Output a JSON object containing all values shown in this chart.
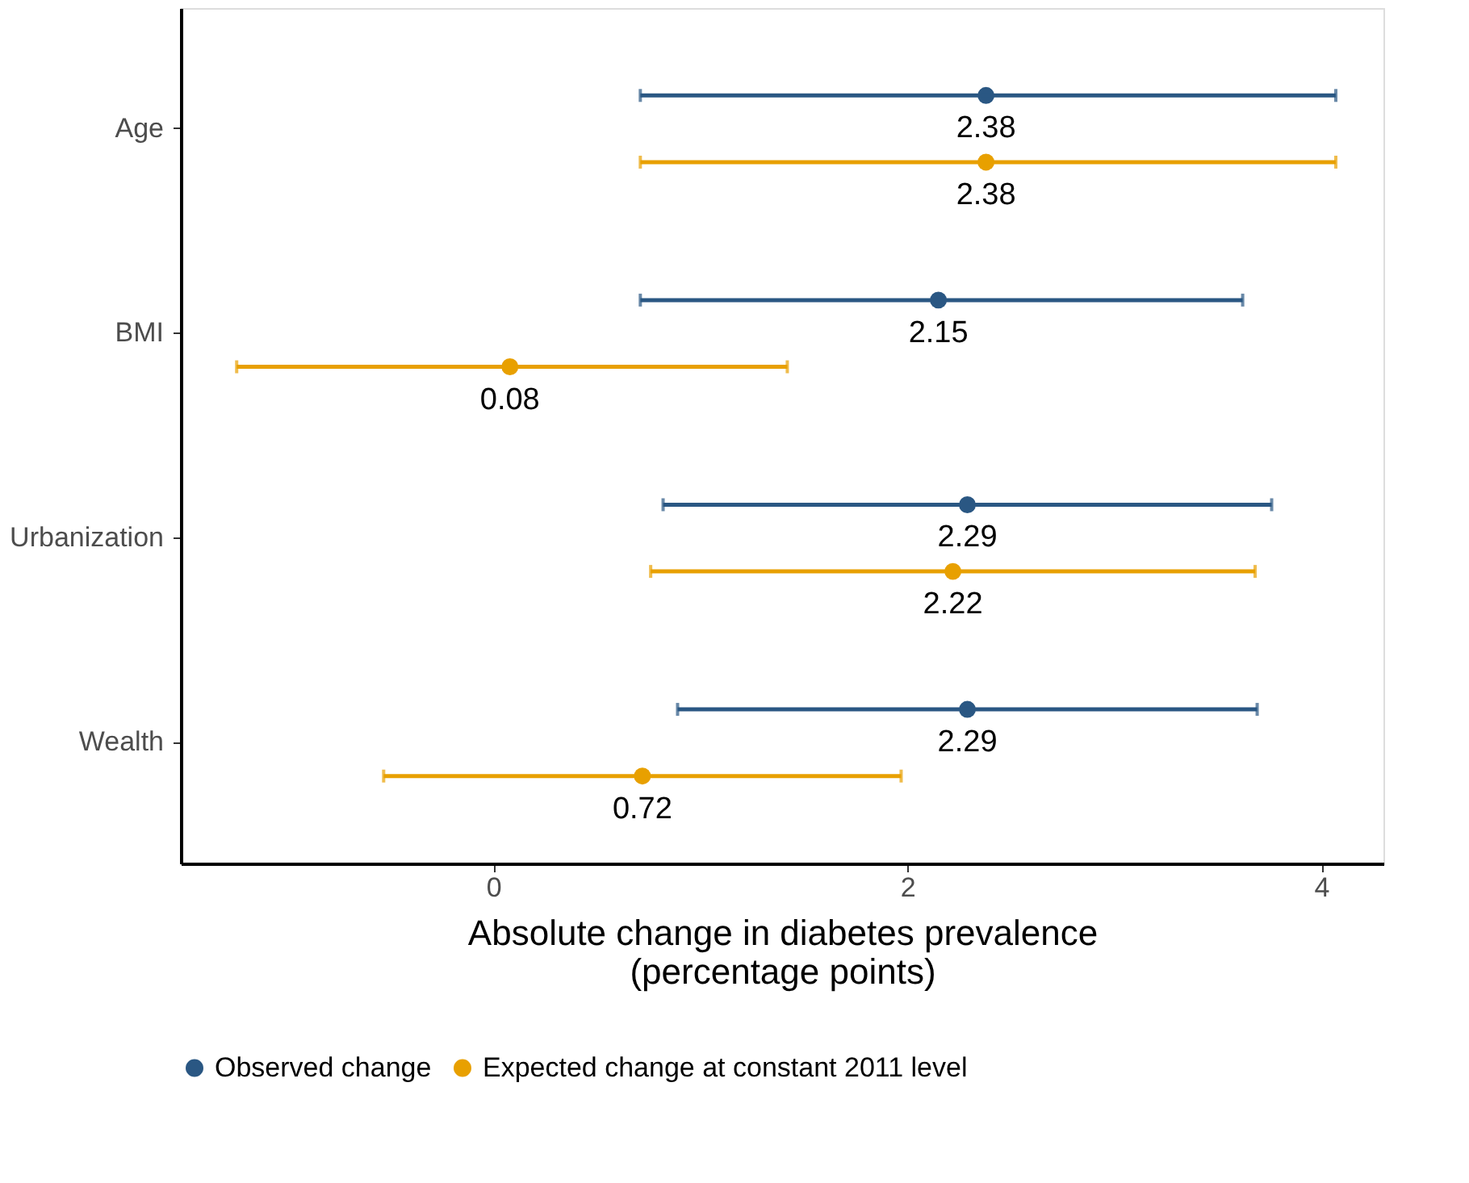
{
  "chart_data": {
    "type": "scatter",
    "orientation": "horizontal",
    "xlabel": "Absolute change in diabetes prevalence\n(percentage points)",
    "categories": [
      "Age",
      "BMI",
      "Urbanization",
      "Wealth"
    ],
    "series": [
      {
        "name": "Observed change",
        "color": "#2a5783",
        "values": [
          2.38,
          2.15,
          2.29,
          2.29
        ],
        "errors": [
          [
            0.71,
            4.07
          ],
          [
            0.71,
            3.62
          ],
          [
            0.82,
            3.76
          ],
          [
            0.89,
            3.69
          ]
        ]
      },
      {
        "name": "Expected change at constant 2011 level",
        "color": "#e8a000",
        "values": [
          2.38,
          0.08,
          2.22,
          0.72
        ],
        "errors": [
          [
            0.71,
            4.07
          ],
          [
            -1.24,
            1.42
          ],
          [
            0.76,
            3.68
          ],
          [
            -0.53,
            1.97
          ]
        ]
      }
    ],
    "xlim": [
      -1.51,
      4.3
    ],
    "xticks": [
      0,
      2,
      4
    ],
    "data_labels": true,
    "marker": "circle",
    "legend": "bottom",
    "grid": false
  }
}
